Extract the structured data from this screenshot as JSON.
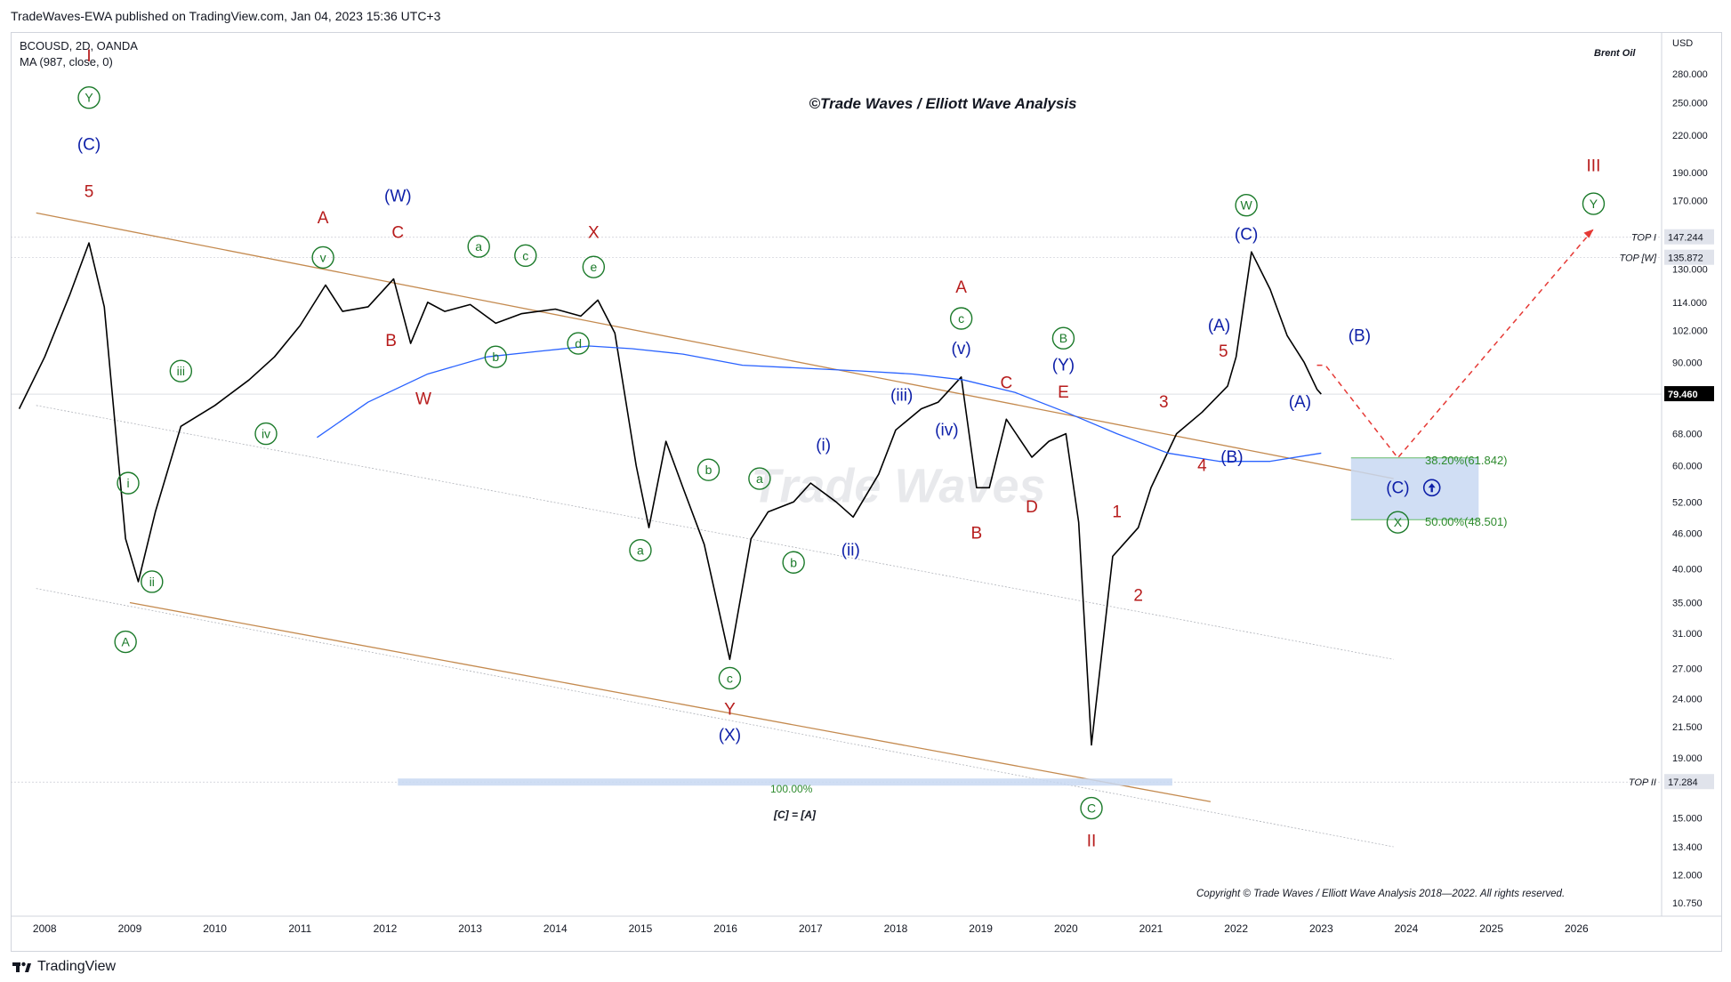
{
  "header": {
    "published": "TradeWaves-EWA published on TradingView.com, Jan 04, 2023 15:36 UTC+3"
  },
  "symbol": {
    "line1": "BCOUSD, 2D, OANDA",
    "line2": "MA (987, close, 0)"
  },
  "top_right_note": "Brent Oil",
  "center_title": "©Trade Waves / Elliott Wave Analysis",
  "watermark": "Trade Waves",
  "copyright": "Copyright © Trade Waves / Elliott Wave Analysis 2018—2022. All rights reserved.",
  "brand": "TradingView",
  "colors": {
    "price": "#000000",
    "ma": "#2962ff",
    "channel": "#c48a4f",
    "red_label": "#b71c1c",
    "blue_label": "#0d1fa8",
    "green_label": "#1b7a2a",
    "zone": "#c8d8f2"
  },
  "chart_data": {
    "type": "line",
    "title": "BCOUSD, 2D, OANDA",
    "ylabel": "USD",
    "yscale": "log",
    "ylim": [
      10.2,
      330
    ],
    "xlim": [
      2007.6,
      2027.0
    ],
    "x_ticks": [
      "2008",
      "2009",
      "2010",
      "2011",
      "2012",
      "2013",
      "2014",
      "2015",
      "2016",
      "2017",
      "2018",
      "2019",
      "2020",
      "2021",
      "2022",
      "2023",
      "2024",
      "2025",
      "2026"
    ],
    "y_ticks": [
      "USD",
      "280.000",
      "250.000",
      "220.000",
      "190.000",
      "170.000",
      "147.244",
      "135.872",
      "130.000",
      "114.000",
      "102.000",
      "90.000",
      "79.460",
      "68.000",
      "60.000",
      "52.000",
      "46.000",
      "40.000",
      "35.000",
      "31.000",
      "27.000",
      "24.000",
      "21.500",
      "19.000",
      "17.284",
      "15.000",
      "13.400",
      "12.000",
      "10.750"
    ],
    "price_labels": [
      {
        "value": 147.244,
        "text": "147.244",
        "tag": "TOP I"
      },
      {
        "value": 135.872,
        "text": "135.872",
        "tag": "TOP [W]"
      },
      {
        "value": 79.46,
        "text": "79.460",
        "tag": "current"
      },
      {
        "value": 17.284,
        "text": "17.284",
        "tag": "TOP II"
      }
    ],
    "series": [
      {
        "name": "BCOUSD",
        "x": [
          2007.7,
          2008.0,
          2008.3,
          2008.52,
          2008.7,
          2008.95,
          2009.1,
          2009.3,
          2009.6,
          2010.0,
          2010.4,
          2010.7,
          2011.0,
          2011.3,
          2011.5,
          2011.8,
          2012.1,
          2012.3,
          2012.5,
          2012.7,
          2013.0,
          2013.3,
          2013.6,
          2013.8,
          2014.0,
          2014.3,
          2014.5,
          2014.7,
          2014.95,
          2015.1,
          2015.3,
          2015.5,
          2015.75,
          2016.05,
          2016.3,
          2016.5,
          2016.8,
          2017.0,
          2017.3,
          2017.5,
          2017.8,
          2018.0,
          2018.3,
          2018.5,
          2018.77,
          2018.95,
          2019.1,
          2019.3,
          2019.6,
          2019.8,
          2020.0,
          2020.15,
          2020.3,
          2020.55,
          2020.85,
          2021.0,
          2021.3,
          2021.6,
          2021.9,
          2022.0,
          2022.18,
          2022.4,
          2022.6,
          2022.8,
          2022.95,
          2023.0
        ],
        "values": [
          75,
          92,
          118,
          144,
          112,
          45,
          38,
          50,
          70,
          76,
          84,
          92,
          104,
          122,
          110,
          112,
          125,
          97,
          114,
          110,
          113,
          105,
          109,
          110,
          111,
          108,
          115,
          101,
          60,
          47,
          66,
          55,
          44,
          28,
          45,
          50,
          52,
          56,
          52,
          49,
          58,
          69,
          75,
          77,
          85,
          55,
          55,
          72,
          62,
          66,
          68,
          48,
          20,
          42,
          47,
          55,
          68,
          74,
          82,
          92,
          139,
          120,
          100,
          90,
          81,
          79.46
        ]
      },
      {
        "name": "MA (987, close, 0)",
        "x": [
          2011.2,
          2011.8,
          2012.5,
          2013.2,
          2013.8,
          2014.4,
          2014.9,
          2015.5,
          2016.2,
          2016.9,
          2017.6,
          2018.2,
          2018.8,
          2019.4,
          2020.0,
          2020.6,
          2021.2,
          2021.8,
          2022.4,
          2023.0
        ],
        "values": [
          67,
          77,
          86,
          92,
          94,
          96,
          95,
          93,
          89,
          88,
          87,
          86,
          84,
          80,
          74,
          68,
          63,
          61,
          61,
          63
        ]
      }
    ],
    "fib_zone": {
      "upper": 61.842,
      "lower": 48.501,
      "upper_label": "38.20%(61.842)",
      "lower_label": "50.00%(48.501)"
    },
    "fib_target": {
      "value": 17.284,
      "label": "100.00%",
      "note": "[C] = [A]"
    },
    "projection": [
      [
        2022.95,
        89
      ],
      [
        2023.05,
        89
      ],
      [
        2023.9,
        61.842
      ],
      [
        2026.2,
        152
      ]
    ],
    "wave_labels": [
      {
        "t": "I",
        "x": 2008.52,
        "y": 300,
        "c": "red"
      },
      {
        "t": "Y",
        "x": 2008.52,
        "y": 255,
        "c": "green",
        "circle": true
      },
      {
        "t": "(C)",
        "x": 2008.52,
        "y": 212,
        "c": "blue"
      },
      {
        "t": "5",
        "x": 2008.52,
        "y": 176,
        "c": "red"
      },
      {
        "t": "i",
        "x": 2008.98,
        "y": 56,
        "c": "green",
        "circle": true
      },
      {
        "t": "ii",
        "x": 2009.26,
        "y": 38,
        "c": "green",
        "circle": true
      },
      {
        "t": "A",
        "x": 2008.95,
        "y": 30,
        "c": "green",
        "circle": true
      },
      {
        "t": "iii",
        "x": 2009.6,
        "y": 87,
        "c": "green",
        "circle": true
      },
      {
        "t": "iv",
        "x": 2010.6,
        "y": 68,
        "c": "green",
        "circle": true
      },
      {
        "t": "v",
        "x": 2011.27,
        "y": 136,
        "c": "green",
        "circle": true
      },
      {
        "t": "A",
        "x": 2011.27,
        "y": 159,
        "c": "red"
      },
      {
        "t": "(W)",
        "x": 2012.15,
        "y": 173,
        "c": "blue"
      },
      {
        "t": "C",
        "x": 2012.15,
        "y": 150,
        "c": "red"
      },
      {
        "t": "B",
        "x": 2012.07,
        "y": 98,
        "c": "red"
      },
      {
        "t": "W",
        "x": 2012.45,
        "y": 78,
        "c": "red"
      },
      {
        "t": "a",
        "x": 2013.1,
        "y": 142,
        "c": "green",
        "circle": true
      },
      {
        "t": "b",
        "x": 2013.3,
        "y": 92,
        "c": "green",
        "circle": true
      },
      {
        "t": "c",
        "x": 2013.65,
        "y": 137,
        "c": "green",
        "circle": true
      },
      {
        "t": "d",
        "x": 2014.27,
        "y": 97,
        "c": "green",
        "circle": true
      },
      {
        "t": "X",
        "x": 2014.45,
        "y": 150,
        "c": "red"
      },
      {
        "t": "e",
        "x": 2014.45,
        "y": 131,
        "c": "green",
        "circle": true
      },
      {
        "t": "a",
        "x": 2015.0,
        "y": 43,
        "c": "green",
        "circle": true
      },
      {
        "t": "b",
        "x": 2015.8,
        "y": 59,
        "c": "green",
        "circle": true
      },
      {
        "t": "a",
        "x": 2016.4,
        "y": 57,
        "c": "green",
        "circle": true
      },
      {
        "t": "b",
        "x": 2016.8,
        "y": 41,
        "c": "green",
        "circle": true
      },
      {
        "t": "c",
        "x": 2016.05,
        "y": 26,
        "c": "green",
        "circle": true
      },
      {
        "t": "Y",
        "x": 2016.05,
        "y": 23,
        "c": "red"
      },
      {
        "t": "(X)",
        "x": 2016.05,
        "y": 20.8,
        "c": "blue"
      },
      {
        "t": "(i)",
        "x": 2017.15,
        "y": 65,
        "c": "blue"
      },
      {
        "t": "(ii)",
        "x": 2017.47,
        "y": 43,
        "c": "blue"
      },
      {
        "t": "(iii)",
        "x": 2018.07,
        "y": 79,
        "c": "blue"
      },
      {
        "t": "(iv)",
        "x": 2018.6,
        "y": 69,
        "c": "blue"
      },
      {
        "t": "(v)",
        "x": 2018.77,
        "y": 95,
        "c": "blue"
      },
      {
        "t": "c",
        "x": 2018.77,
        "y": 107,
        "c": "green",
        "circle": true
      },
      {
        "t": "A",
        "x": 2018.77,
        "y": 121,
        "c": "red"
      },
      {
        "t": "B",
        "x": 2018.95,
        "y": 46,
        "c": "red"
      },
      {
        "t": "C",
        "x": 2019.3,
        "y": 83,
        "c": "red"
      },
      {
        "t": "D",
        "x": 2019.6,
        "y": 51,
        "c": "red"
      },
      {
        "t": "B",
        "x": 2019.97,
        "y": 99,
        "c": "green",
        "circle": true
      },
      {
        "t": "(Y)",
        "x": 2019.97,
        "y": 89,
        "c": "blue"
      },
      {
        "t": "E",
        "x": 2019.97,
        "y": 80,
        "c": "red"
      },
      {
        "t": "C",
        "x": 2020.3,
        "y": 15.6,
        "c": "green",
        "circle": true
      },
      {
        "t": "II",
        "x": 2020.3,
        "y": 13.7,
        "c": "red"
      },
      {
        "t": "1",
        "x": 2020.6,
        "y": 50,
        "c": "red"
      },
      {
        "t": "2",
        "x": 2020.85,
        "y": 36,
        "c": "red"
      },
      {
        "t": "3",
        "x": 2021.15,
        "y": 77,
        "c": "red"
      },
      {
        "t": "4",
        "x": 2021.6,
        "y": 60,
        "c": "red"
      },
      {
        "t": "5",
        "x": 2021.85,
        "y": 94,
        "c": "red"
      },
      {
        "t": "(A)",
        "x": 2021.8,
        "y": 104,
        "c": "blue"
      },
      {
        "t": "(B)",
        "x": 2021.95,
        "y": 62,
        "c": "blue"
      },
      {
        "t": "W",
        "x": 2022.12,
        "y": 167,
        "c": "green",
        "circle": true
      },
      {
        "t": "(C)",
        "x": 2022.12,
        "y": 149,
        "c": "blue"
      },
      {
        "t": "(B)",
        "x": 2023.45,
        "y": 100,
        "c": "blue"
      },
      {
        "t": "(A)",
        "x": 2022.75,
        "y": 77,
        "c": "blue"
      },
      {
        "t": "(C)",
        "x": 2023.9,
        "y": 55,
        "c": "blue"
      },
      {
        "t": "X",
        "x": 2023.9,
        "y": 48,
        "c": "green",
        "circle": true
      },
      {
        "t": "III",
        "x": 2026.2,
        "y": 195,
        "c": "red"
      },
      {
        "t": "Y",
        "x": 2026.2,
        "y": 168,
        "c": "green",
        "circle": true
      }
    ]
  }
}
